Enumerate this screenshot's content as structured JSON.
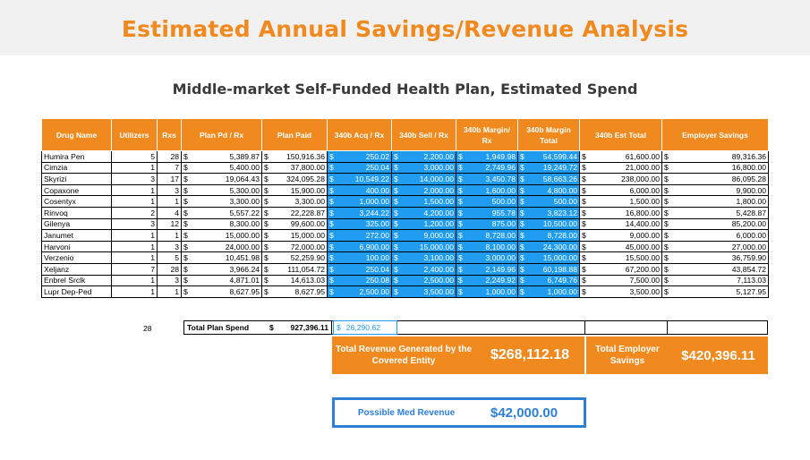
{
  "title": "Estimated Annual Savings/Revenue Analysis",
  "subtitle": "Middle-market Self-Funded Health Plan, Estimated Spend",
  "currency_symbol": "$",
  "colors": {
    "accent": "#f08a1e",
    "blue": "#1f9cf0",
    "box_border": "#2e7fd6"
  },
  "columns": [
    "Drug Name",
    "Utilizers",
    "Rxs",
    "Plan Pd / Rx",
    "Plan Paid",
    "340b Acq / Rx",
    "340b Sell / Rx",
    "340b Margin/ Rx",
    "340b Margin Total",
    "340b Est Total",
    "Employer Savings"
  ],
  "rows": [
    {
      "drug": "Humira Pen",
      "utilizers": "5",
      "rxs": "28",
      "plan_pd_rx": "5,389.87",
      "plan_paid": "150,916.36",
      "acq_rx": "250.02",
      "sell_rx": "2,200.00",
      "margin_rx": "1,949.98",
      "margin_total": "54,599.44",
      "est_total": "61,600.00",
      "employer_savings": "89,316.36"
    },
    {
      "drug": "Cimzia",
      "utilizers": "1",
      "rxs": "7",
      "plan_pd_rx": "5,400.00",
      "plan_paid": "37,800.00",
      "acq_rx": "250.04",
      "sell_rx": "3,000.00",
      "margin_rx": "2,749.96",
      "margin_total": "19,249.72",
      "est_total": "21,000.00",
      "employer_savings": "16,800.00"
    },
    {
      "drug": "Skyrizi",
      "utilizers": "3",
      "rxs": "17",
      "plan_pd_rx": "19,064.43",
      "plan_paid": "324,095.28",
      "acq_rx": "10,549.22",
      "sell_rx": "14,000.00",
      "margin_rx": "3,450.78",
      "margin_total": "58,663.26",
      "est_total": "238,000.00",
      "employer_savings": "86,095.28"
    },
    {
      "drug": "Copaxone",
      "utilizers": "1",
      "rxs": "3",
      "plan_pd_rx": "5,300.00",
      "plan_paid": "15,900.00",
      "acq_rx": "400.00",
      "sell_rx": "2,000.00",
      "margin_rx": "1,600.00",
      "margin_total": "4,800.00",
      "est_total": "6,000.00",
      "employer_savings": "9,900.00"
    },
    {
      "drug": "Cosentyx",
      "utilizers": "1",
      "rxs": "1",
      "plan_pd_rx": "3,300.00",
      "plan_paid": "3,300.00",
      "acq_rx": "1,000.00",
      "sell_rx": "1,500.00",
      "margin_rx": "500.00",
      "margin_total": "500.00",
      "est_total": "1,500.00",
      "employer_savings": "1,800.00"
    },
    {
      "drug": "Rinvoq",
      "utilizers": "2",
      "rxs": "4",
      "plan_pd_rx": "5,557.22",
      "plan_paid": "22,228.87",
      "acq_rx": "3,244.22",
      "sell_rx": "4,200.00",
      "margin_rx": "955.78",
      "margin_total": "3,823.12",
      "est_total": "16,800.00",
      "employer_savings": "5,428.87"
    },
    {
      "drug": "Gilenya",
      "utilizers": "3",
      "rxs": "12",
      "plan_pd_rx": "8,300.00",
      "plan_paid": "99,600.00",
      "acq_rx": "325.00",
      "sell_rx": "1,200.00",
      "margin_rx": "875.00",
      "margin_total": "10,500.00",
      "est_total": "14,400.00",
      "employer_savings": "85,200.00"
    },
    {
      "drug": "Janumet",
      "utilizers": "1",
      "rxs": "1",
      "plan_pd_rx": "15,000.00",
      "plan_paid": "15,000.00",
      "acq_rx": "272.00",
      "sell_rx": "9,000.00",
      "margin_rx": "8,728.00",
      "margin_total": "8,728.00",
      "est_total": "9,000.00",
      "employer_savings": "6,000.00"
    },
    {
      "drug": "Harvoni",
      "utilizers": "1",
      "rxs": "3",
      "plan_pd_rx": "24,000.00",
      "plan_paid": "72,000.00",
      "acq_rx": "6,900.00",
      "sell_rx": "15,000.00",
      "margin_rx": "8,100.00",
      "margin_total": "24,300.00",
      "est_total": "45,000.00",
      "employer_savings": "27,000.00"
    },
    {
      "drug": "Verzenio",
      "utilizers": "1",
      "rxs": "5",
      "plan_pd_rx": "10,451.98",
      "plan_paid": "52,259.90",
      "acq_rx": "100.00",
      "sell_rx": "3,100.00",
      "margin_rx": "3,000.00",
      "margin_total": "15,000.00",
      "est_total": "15,500.00",
      "employer_savings": "36,759.90"
    },
    {
      "drug": "Xeljanz",
      "utilizers": "7",
      "rxs": "28",
      "plan_pd_rx": "3,966.24",
      "plan_paid": "111,054.72",
      "acq_rx": "250.04",
      "sell_rx": "2,400.00",
      "margin_rx": "2,149.96",
      "margin_total": "60,198.88",
      "est_total": "67,200.00",
      "employer_savings": "43,854.72"
    },
    {
      "drug": "Enbrel Srclk",
      "utilizers": "1",
      "rxs": "3",
      "plan_pd_rx": "4,871.01",
      "plan_paid": "14,613.03",
      "acq_rx": "250.08",
      "sell_rx": "2,500.00",
      "margin_rx": "2,249.92",
      "margin_total": "6,749.76",
      "est_total": "7,500.00",
      "employer_savings": "7,113.03"
    },
    {
      "drug": "Lupr Dep-Ped",
      "utilizers": "1",
      "rxs": "1",
      "plan_pd_rx": "8,627.95",
      "plan_paid": "8,627.95",
      "acq_rx": "2,500.00",
      "sell_rx": "3,500.00",
      "margin_rx": "1,000.00",
      "margin_total": "1,000.00",
      "est_total": "3,500.00",
      "employer_savings": "5,127.95"
    }
  ],
  "totals": {
    "utilizers": "28",
    "plan_spend_label": "Total Plan Spend",
    "plan_spend": "927,396.11",
    "acq_total": "26,290.62"
  },
  "revenue_box": {
    "label": "Total Revenue Generated by the Covered Entity",
    "value": "$268,112.18"
  },
  "employer_box": {
    "label": "Total Employer Savings",
    "value": "$420,396.11"
  },
  "med_box": {
    "label": "Possible Med Revenue",
    "value": "$42,000.00"
  }
}
